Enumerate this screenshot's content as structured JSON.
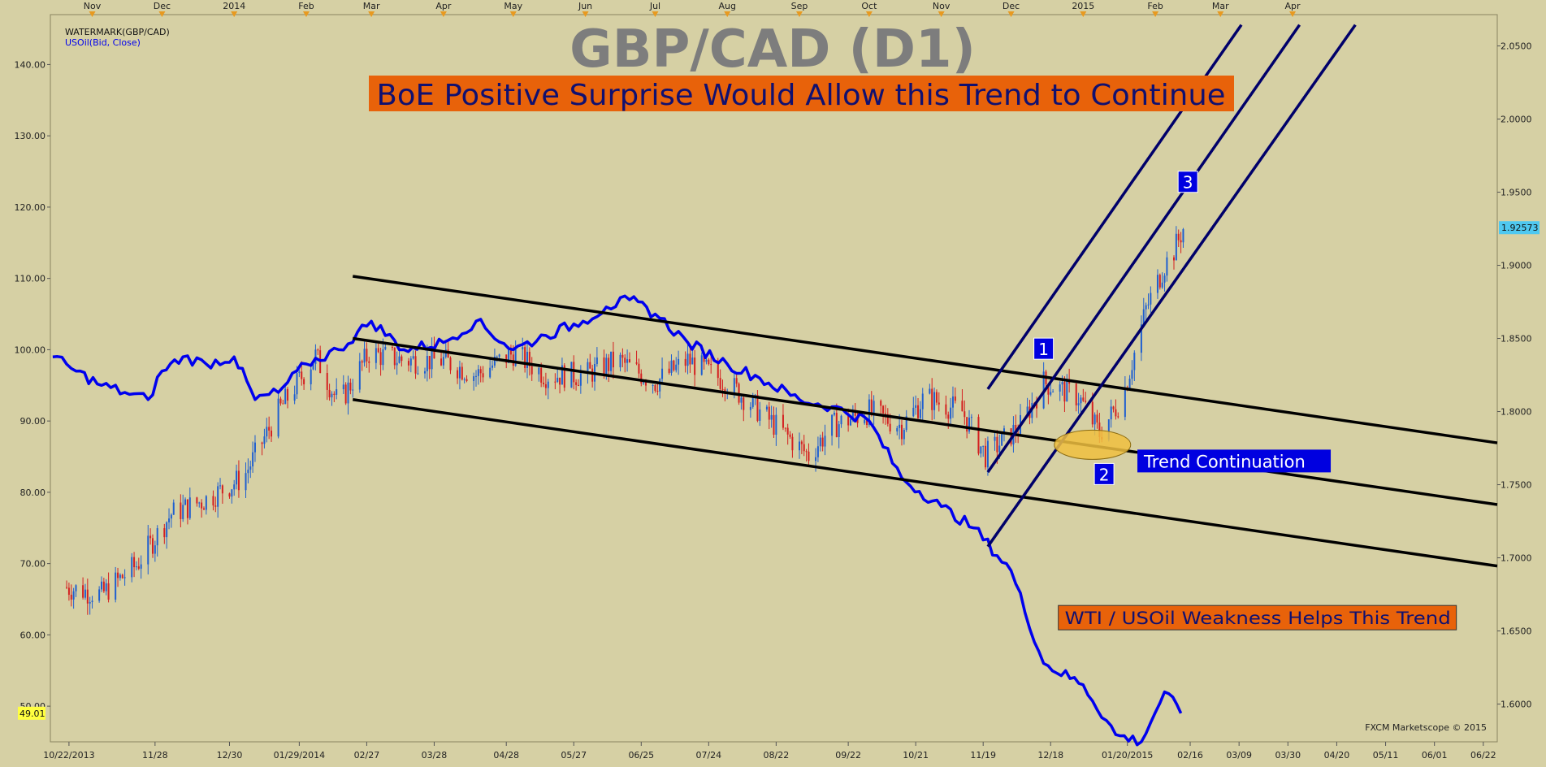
{
  "chart_data": {
    "type": "candlestick",
    "title": "GBP/CAD (D1)",
    "subtitle": "BoE Positive Surprise Would Allow this Trend to Continue",
    "legend": [
      "WATERMARK(GBP/CAD)",
      "USOil(Bid, Close)"
    ],
    "credit": "FXCM Marketscope © 2015",
    "colors": {
      "background": "#d6d0a4",
      "up_candle": "#1f5fd0",
      "down_candle": "#d42020",
      "usoil_line": "#0000ee",
      "channel_line": "#000000",
      "trend_line": "#00006a",
      "banner_bg": "#e8620a",
      "banner_text": "#101070",
      "label_bg": "#0000e0",
      "current_price_bg": "#4fc8f0",
      "oil_price_bg": "#ffff40",
      "highlight_ellipse": "#f0c040"
    },
    "xaxis": {
      "start": "2013-10-14",
      "end": "2015-06-28",
      "months_top": [
        {
          "label": "Nov",
          "date": "2013-11-01"
        },
        {
          "label": "Dec",
          "date": "2013-12-01"
        },
        {
          "label": "2014",
          "date": "2014-01-01"
        },
        {
          "label": "Feb",
          "date": "2014-02-01"
        },
        {
          "label": "Mar",
          "date": "2014-03-01"
        },
        {
          "label": "Apr",
          "date": "2014-04-01"
        },
        {
          "label": "May",
          "date": "2014-05-01"
        },
        {
          "label": "Jun",
          "date": "2014-06-01"
        },
        {
          "label": "Jul",
          "date": "2014-07-01"
        },
        {
          "label": "Aug",
          "date": "2014-08-01"
        },
        {
          "label": "Sep",
          "date": "2014-09-01"
        },
        {
          "label": "Oct",
          "date": "2014-10-01"
        },
        {
          "label": "Nov",
          "date": "2014-11-01"
        },
        {
          "label": "Dec",
          "date": "2014-12-01"
        },
        {
          "label": "2015",
          "date": "2015-01-01"
        },
        {
          "label": "Feb",
          "date": "2015-02-01"
        },
        {
          "label": "Mar",
          "date": "2015-03-01"
        },
        {
          "label": "Apr",
          "date": "2015-04-01"
        }
      ],
      "dates_bottom": [
        {
          "label": "10/22/2013",
          "date": "2013-10-22"
        },
        {
          "label": "11/28",
          "date": "2013-11-28"
        },
        {
          "label": "12/30",
          "date": "2013-12-30"
        },
        {
          "label": "01/29/2014",
          "date": "2014-01-29"
        },
        {
          "label": "02/27",
          "date": "2014-02-27"
        },
        {
          "label": "03/28",
          "date": "2014-03-28"
        },
        {
          "label": "04/28",
          "date": "2014-04-28"
        },
        {
          "label": "05/27",
          "date": "2014-05-27"
        },
        {
          "label": "06/25",
          "date": "2014-06-25"
        },
        {
          "label": "07/24",
          "date": "2014-07-24"
        },
        {
          "label": "08/22",
          "date": "2014-08-22"
        },
        {
          "label": "09/22",
          "date": "2014-09-22"
        },
        {
          "label": "10/21",
          "date": "2014-10-21"
        },
        {
          "label": "11/19",
          "date": "2014-11-19"
        },
        {
          "label": "12/18",
          "date": "2014-12-18"
        },
        {
          "label": "01/20/2015",
          "date": "2015-01-20"
        },
        {
          "label": "02/16",
          "date": "2015-02-16"
        },
        {
          "label": "03/09",
          "date": "2015-03-09"
        },
        {
          "label": "03/30",
          "date": "2015-03-30"
        },
        {
          "label": "04/20",
          "date": "2015-04-20"
        },
        {
          "label": "05/11",
          "date": "2015-05-11"
        },
        {
          "label": "06/01",
          "date": "2015-06-01"
        },
        {
          "label": "06/22",
          "date": "2015-06-22"
        }
      ]
    },
    "left_axis": {
      "range": [
        45,
        147
      ],
      "ticks": [
        {
          "value": 50,
          "label": "50.00"
        },
        {
          "value": 60,
          "label": "60.00"
        },
        {
          "value": 70,
          "label": "70.00"
        },
        {
          "value": 80,
          "label": "80.00"
        },
        {
          "value": 90,
          "label": "90.00"
        },
        {
          "value": 100,
          "label": "100.00"
        },
        {
          "value": 110,
          "label": "110.00"
        },
        {
          "value": 120,
          "label": "120.00"
        },
        {
          "value": 130,
          "label": "130.00"
        },
        {
          "value": 140,
          "label": "140.00"
        }
      ]
    },
    "right_axis": {
      "range": [
        1.5742,
        2.0714
      ],
      "ticks": [
        {
          "value": 1.6,
          "label": "1.6000"
        },
        {
          "value": 1.65,
          "label": "1.6500"
        },
        {
          "value": 1.7,
          "label": "1.7000"
        },
        {
          "value": 1.75,
          "label": "1.7500"
        },
        {
          "value": 1.8,
          "label": "1.8000"
        },
        {
          "value": 1.85,
          "label": "1.8500"
        },
        {
          "value": 1.9,
          "label": "1.9000"
        },
        {
          "value": 1.95,
          "label": "1.9500"
        },
        {
          "value": 2.0,
          "label": "2.0000"
        },
        {
          "value": 2.05,
          "label": "2.0500"
        }
      ]
    },
    "current_price": {
      "value": 1.92573,
      "label": "1.92573"
    },
    "oil_last": {
      "value": 49.01,
      "label": "49.01"
    },
    "gbpcad_anchors": [
      [
        "2013-10-20",
        1.68
      ],
      [
        "2013-11-05",
        1.675
      ],
      [
        "2013-11-20",
        1.695
      ],
      [
        "2013-12-05",
        1.73
      ],
      [
        "2013-12-20",
        1.74
      ],
      [
        "2014-01-05",
        1.755
      ],
      [
        "2014-01-20",
        1.8
      ],
      [
        "2014-02-05",
        1.838
      ],
      [
        "2014-02-15",
        1.805
      ],
      [
        "2014-02-28",
        1.84
      ],
      [
        "2014-03-15",
        1.835
      ],
      [
        "2014-04-01",
        1.835
      ],
      [
        "2014-04-15",
        1.825
      ],
      [
        "2014-05-01",
        1.84
      ],
      [
        "2014-05-15",
        1.825
      ],
      [
        "2014-06-01",
        1.825
      ],
      [
        "2014-06-15",
        1.835
      ],
      [
        "2014-07-01",
        1.82
      ],
      [
        "2014-07-15",
        1.835
      ],
      [
        "2014-08-01",
        1.82
      ],
      [
        "2014-08-15",
        1.8
      ],
      [
        "2014-09-05",
        1.77
      ],
      [
        "2014-09-15",
        1.79
      ],
      [
        "2014-10-01",
        1.8
      ],
      [
        "2014-10-15",
        1.79
      ],
      [
        "2014-10-25",
        1.81
      ],
      [
        "2014-11-10",
        1.8
      ],
      [
        "2014-11-20",
        1.77
      ],
      [
        "2014-12-05",
        1.79
      ],
      [
        "2014-12-15",
        1.82
      ],
      [
        "2014-12-30",
        1.81
      ],
      [
        "2015-01-08",
        1.785
      ],
      [
        "2015-01-18",
        1.81
      ],
      [
        "2015-01-28",
        1.87
      ],
      [
        "2015-02-05",
        1.9
      ],
      [
        "2015-02-09",
        1.91
      ],
      [
        "2015-02-13",
        1.925
      ]
    ],
    "usoil_series": [
      [
        "2013-10-15",
        99
      ],
      [
        "2013-10-25",
        97
      ],
      [
        "2013-11-05",
        95
      ],
      [
        "2013-11-15",
        94
      ],
      [
        "2013-11-25",
        93
      ],
      [
        "2013-12-01",
        97
      ],
      [
        "2013-12-10",
        99
      ],
      [
        "2013-12-20",
        98
      ],
      [
        "2014-01-01",
        99
      ],
      [
        "2014-01-10",
        93
      ],
      [
        "2014-01-20",
        94
      ],
      [
        "2014-02-01",
        98
      ],
      [
        "2014-02-15",
        100
      ],
      [
        "2014-03-01",
        104
      ],
      [
        "2014-03-15",
        100
      ],
      [
        "2014-04-01",
        101
      ],
      [
        "2014-04-15",
        104
      ],
      [
        "2014-05-01",
        100
      ],
      [
        "2014-05-15",
        102
      ],
      [
        "2014-05-31",
        104
      ],
      [
        "2014-06-10",
        106
      ],
      [
        "2014-06-20",
        107
      ],
      [
        "2014-07-01",
        105
      ],
      [
        "2014-07-15",
        101
      ],
      [
        "2014-08-01",
        98
      ],
      [
        "2014-08-15",
        96
      ],
      [
        "2014-09-01",
        93
      ],
      [
        "2014-09-15",
        92
      ],
      [
        "2014-10-01",
        90
      ],
      [
        "2014-10-15",
        82
      ],
      [
        "2014-11-01",
        78
      ],
      [
        "2014-11-15",
        75
      ],
      [
        "2014-12-01",
        69
      ],
      [
        "2014-12-15",
        56
      ],
      [
        "2015-01-01",
        53
      ],
      [
        "2015-01-15",
        46
      ],
      [
        "2015-01-26",
        45
      ],
      [
        "2015-02-05",
        52
      ],
      [
        "2015-02-12",
        49
      ]
    ],
    "channel_lines": [
      {
        "from": [
          "2014-02-21",
          1.8925
        ],
        "to": [
          "2015-06-28",
          1.7786
        ]
      },
      {
        "from": [
          "2014-02-21",
          1.85
        ],
        "to": [
          "2015-06-28",
          1.7364
        ]
      },
      {
        "from": [
          "2014-02-21",
          1.8082
        ],
        "to": [
          "2015-06-28",
          1.6944
        ]
      }
    ],
    "trend_lines": [
      {
        "from": [
          "2014-11-21",
          1.7586
        ],
        "to": [
          "2015-04-04",
          2.0644
        ]
      },
      {
        "from": [
          "2014-11-21",
          1.8154
        ],
        "to": [
          "2015-03-10",
          2.0644
        ]
      },
      {
        "from": [
          "2014-11-21",
          1.7077
        ],
        "to": [
          "2015-04-28",
          2.0644
        ]
      }
    ],
    "annotations": [
      {
        "text": "1",
        "date": "2014-12-15",
        "price": 1.843
      },
      {
        "text": "2",
        "date": "2015-01-10",
        "price": 1.7573
      },
      {
        "text": "3",
        "date": "2015-02-15",
        "price": 1.9571
      },
      {
        "text": "Trend Continuation",
        "date": "2015-01-25",
        "price": 1.7662
      },
      {
        "text": "WTI / USOil Weakness Helps This Trend",
        "date": "2014-12-22",
        "price": 1.6591
      }
    ],
    "highlight": {
      "date": "2015-01-05",
      "price": 1.7773
    }
  }
}
